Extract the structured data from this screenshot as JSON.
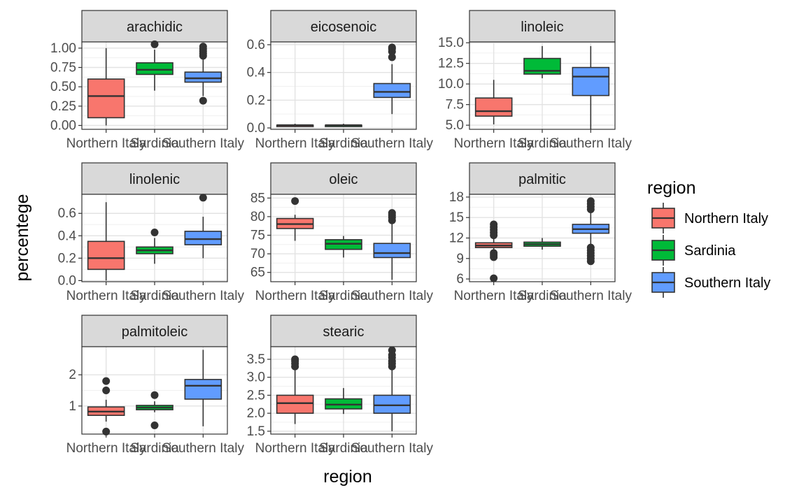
{
  "chart_data": {
    "type": "boxplot",
    "title": "",
    "xlabel": "region",
    "ylabel": "percentege",
    "categories": [
      "Northern Italy",
      "Sardinia",
      "Southern Italy"
    ],
    "legend": {
      "title": "region",
      "placement": "right",
      "entries": [
        {
          "name": "Northern Italy",
          "color": "#F8766D"
        },
        {
          "name": "Sardinia",
          "color": "#00BA38"
        },
        {
          "name": "Southern Italy",
          "color": "#619CFF"
        }
      ]
    },
    "panels": [
      {
        "name": "arachidic",
        "ylim": [
          -0.05,
          1.08
        ],
        "ticks": [
          0.0,
          0.25,
          0.5,
          0.75,
          1.0
        ],
        "tick_labels": [
          "0.00",
          "0.25",
          "0.50",
          "0.75",
          "1.00"
        ],
        "boxes": [
          {
            "region": "Northern Italy",
            "whisker_low": 0.0,
            "q1": 0.1,
            "median": 0.38,
            "q3": 0.6,
            "whisker_high": 1.0,
            "outliers": []
          },
          {
            "region": "Sardinia",
            "whisker_low": 0.45,
            "q1": 0.66,
            "median": 0.72,
            "q3": 0.81,
            "whisker_high": 0.98,
            "outliers": [
              1.05
            ]
          },
          {
            "region": "Southern Italy",
            "whisker_low": 0.38,
            "q1": 0.56,
            "median": 0.61,
            "q3": 0.69,
            "whisker_high": 0.88,
            "outliers": [
              0.32,
              0.9,
              0.93,
              0.96,
              0.99,
              1.02
            ]
          }
        ]
      },
      {
        "name": "eicosenoic",
        "ylim": [
          -0.01,
          0.62
        ],
        "ticks": [
          0.0,
          0.2,
          0.4,
          0.6
        ],
        "tick_labels": [
          "0.0",
          "0.2",
          "0.4",
          "0.6"
        ],
        "boxes": [
          {
            "region": "Northern Italy",
            "whisker_low": 0.01,
            "q1": 0.01,
            "median": 0.02,
            "q3": 0.02,
            "whisker_high": 0.03,
            "outliers": []
          },
          {
            "region": "Sardinia",
            "whisker_low": 0.01,
            "q1": 0.01,
            "median": 0.02,
            "q3": 0.02,
            "whisker_high": 0.03,
            "outliers": []
          },
          {
            "region": "Southern Italy",
            "whisker_low": 0.1,
            "q1": 0.22,
            "median": 0.26,
            "q3": 0.32,
            "whisker_high": 0.46,
            "outliers": [
              0.51,
              0.55,
              0.57,
              0.58
            ]
          }
        ]
      },
      {
        "name": "linoleic",
        "ylim": [
          4.5,
          15.1
        ],
        "ticks": [
          5.0,
          7.5,
          10.0,
          12.5,
          15.0
        ],
        "tick_labels": [
          "5.0",
          "7.5",
          "10.0",
          "12.5",
          "15.0"
        ],
        "boxes": [
          {
            "region": "Northern Italy",
            "whisker_low": 5.1,
            "q1": 6.1,
            "median": 6.7,
            "q3": 8.3,
            "whisker_high": 10.5,
            "outliers": []
          },
          {
            "region": "Sardinia",
            "whisker_low": 10.7,
            "q1": 11.2,
            "median": 11.6,
            "q3": 13.1,
            "whisker_high": 14.6,
            "outliers": []
          },
          {
            "region": "Southern Italy",
            "whisker_low": 4.5,
            "q1": 8.6,
            "median": 10.9,
            "q3": 12.0,
            "whisker_high": 14.6,
            "outliers": []
          }
        ]
      },
      {
        "name": "linolenic",
        "ylim": [
          -0.01,
          0.77
        ],
        "ticks": [
          0.0,
          0.2,
          0.4,
          0.6
        ],
        "tick_labels": [
          "0.0",
          "0.2",
          "0.4",
          "0.6"
        ],
        "boxes": [
          {
            "region": "Northern Italy",
            "whisker_low": 0.0,
            "q1": 0.1,
            "median": 0.2,
            "q3": 0.35,
            "whisker_high": 0.7,
            "outliers": []
          },
          {
            "region": "Sardinia",
            "whisker_low": 0.15,
            "q1": 0.24,
            "median": 0.27,
            "q3": 0.3,
            "whisker_high": 0.38,
            "outliers": [
              0.43
            ]
          },
          {
            "region": "Southern Italy",
            "whisker_low": 0.2,
            "q1": 0.32,
            "median": 0.37,
            "q3": 0.44,
            "whisker_high": 0.57,
            "outliers": [
              0.74
            ]
          }
        ]
      },
      {
        "name": "oleic",
        "ylim": [
          62.5,
          86.0
        ],
        "ticks": [
          65,
          70,
          75,
          80,
          85
        ],
        "tick_labels": [
          "65",
          "70",
          "75",
          "80",
          "85"
        ],
        "boxes": [
          {
            "region": "Northern Italy",
            "whisker_low": 73.5,
            "q1": 76.8,
            "median": 78.0,
            "q3": 79.5,
            "whisker_high": 80.5,
            "outliers": [
              84.2
            ]
          },
          {
            "region": "Sardinia",
            "whisker_low": 69.0,
            "q1": 71.2,
            "median": 72.7,
            "q3": 73.8,
            "whisker_high": 74.8,
            "outliers": []
          },
          {
            "region": "Southern Italy",
            "whisker_low": 63.0,
            "q1": 69.0,
            "median": 70.2,
            "q3": 72.8,
            "whisker_high": 78.2,
            "outliers": [
              79.0,
              79.8,
              80.4,
              81.0
            ]
          }
        ]
      },
      {
        "name": "palmitic",
        "ylim": [
          5.6,
          18.4
        ],
        "ticks": [
          6,
          9,
          12,
          15,
          18
        ],
        "tick_labels": [
          "6",
          "9",
          "12",
          "15",
          "18"
        ],
        "boxes": [
          {
            "region": "Northern Italy",
            "whisker_low": 9.6,
            "q1": 10.6,
            "median": 10.9,
            "q3": 11.3,
            "whisker_high": 12.0,
            "outliers": [
              6.1,
              9.2,
              9.5,
              9.8,
              12.4,
              12.8,
              13.2,
              13.6,
              14.0
            ]
          },
          {
            "region": "Sardinia",
            "whisker_low": 10.3,
            "q1": 10.8,
            "median": 11.1,
            "q3": 11.4,
            "whisker_high": 12.0,
            "outliers": []
          },
          {
            "region": "Southern Italy",
            "whisker_low": 11.0,
            "q1": 12.7,
            "median": 13.3,
            "q3": 14.0,
            "whisker_high": 15.8,
            "outliers": [
              8.6,
              9.0,
              9.4,
              9.8,
              10.2,
              10.6,
              16.2,
              16.6,
              17.0,
              17.4
            ]
          }
        ]
      },
      {
        "name": "palmitoleic",
        "ylim": [
          0.1,
          2.9
        ],
        "ticks": [
          1,
          2
        ],
        "tick_labels": [
          "1",
          "2"
        ],
        "boxes": [
          {
            "region": "Northern Italy",
            "whisker_low": 0.5,
            "q1": 0.7,
            "median": 0.82,
            "q3": 0.97,
            "whisker_high": 1.2,
            "outliers": [
              0.18,
              1.5,
              1.8
            ]
          },
          {
            "region": "Sardinia",
            "whisker_low": 0.8,
            "q1": 0.88,
            "median": 0.95,
            "q3": 1.02,
            "whisker_high": 1.15,
            "outliers": [
              0.38,
              1.35
            ]
          },
          {
            "region": "Southern Italy",
            "whisker_low": 0.35,
            "q1": 1.22,
            "median": 1.65,
            "q3": 1.85,
            "whisker_high": 2.8,
            "outliers": []
          }
        ]
      },
      {
        "name": "stearic",
        "ylim": [
          1.42,
          3.85
        ],
        "ticks": [
          1.5,
          2.0,
          2.5,
          3.0,
          3.5
        ],
        "tick_labels": [
          "1.5",
          "2.0",
          "2.5",
          "3.0",
          "3.5"
        ],
        "boxes": [
          {
            "region": "Northern Italy",
            "whisker_low": 1.7,
            "q1": 2.0,
            "median": 2.28,
            "q3": 2.5,
            "whisker_high": 3.2,
            "outliers": [
              3.3,
              3.38,
              3.45,
              3.5
            ]
          },
          {
            "region": "Sardinia",
            "whisker_low": 1.98,
            "q1": 2.12,
            "median": 2.24,
            "q3": 2.4,
            "whisker_high": 2.7,
            "outliers": []
          },
          {
            "region": "Southern Italy",
            "whisker_low": 1.5,
            "q1": 2.0,
            "median": 2.22,
            "q3": 2.5,
            "whisker_high": 3.2,
            "outliers": [
              3.3,
              3.38,
              3.45,
              3.55,
              3.62,
              3.75
            ]
          }
        ]
      }
    ]
  }
}
